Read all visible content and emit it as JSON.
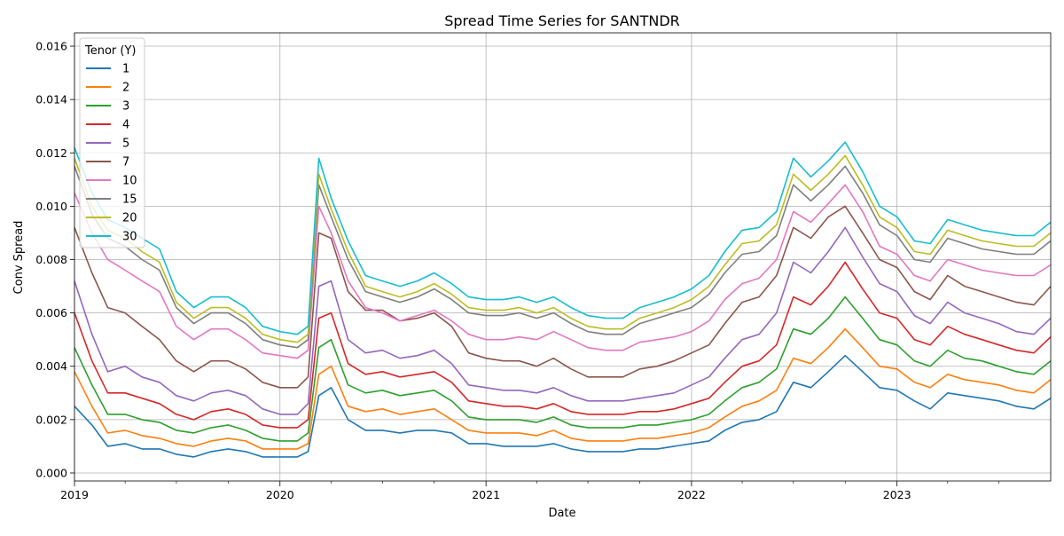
{
  "chart_data": {
    "type": "line",
    "title": "Spread Time Series for SANTNDR",
    "xlabel": "Date",
    "ylabel": "Conv Spread",
    "xlim": [
      "2019-01-01",
      "2023-10-01"
    ],
    "ylim": [
      -0.0003,
      0.0165
    ],
    "grid": true,
    "legend": {
      "title": "Tenor (Y)",
      "placement": "top-left"
    },
    "x_ticks": [
      {
        "date": "2019-01-01",
        "label": "2019"
      },
      {
        "date": "2020-01-01",
        "label": "2020"
      },
      {
        "date": "2021-01-01",
        "label": "2021"
      },
      {
        "date": "2022-01-01",
        "label": "2022"
      },
      {
        "date": "2023-01-01",
        "label": "2023"
      }
    ],
    "y_ticks": [
      "0.000",
      "0.002",
      "0.004",
      "0.006",
      "0.008",
      "0.010",
      "0.012",
      "0.014",
      "0.016"
    ],
    "x": [
      "2019-01-01",
      "2019-02-01",
      "2019-03-01",
      "2019-04-01",
      "2019-05-01",
      "2019-06-01",
      "2019-07-01",
      "2019-08-01",
      "2019-09-01",
      "2019-10-01",
      "2019-11-01",
      "2019-12-01",
      "2020-01-01",
      "2020-02-01",
      "2020-02-20",
      "2020-03-10",
      "2020-04-01",
      "2020-05-01",
      "2020-06-01",
      "2020-07-01",
      "2020-08-01",
      "2020-09-01",
      "2020-10-01",
      "2020-11-01",
      "2020-12-01",
      "2021-01-01",
      "2021-02-01",
      "2021-03-01",
      "2021-04-01",
      "2021-05-01",
      "2021-06-01",
      "2021-07-01",
      "2021-08-01",
      "2021-09-01",
      "2021-10-01",
      "2021-11-01",
      "2021-12-01",
      "2022-01-01",
      "2022-02-01",
      "2022-03-01",
      "2022-04-01",
      "2022-05-01",
      "2022-06-01",
      "2022-07-01",
      "2022-08-01",
      "2022-09-01",
      "2022-10-01",
      "2022-11-01",
      "2022-12-01",
      "2023-01-01",
      "2023-02-01",
      "2023-03-01",
      "2023-04-01",
      "2023-05-01",
      "2023-06-01",
      "2023-07-01",
      "2023-08-01",
      "2023-09-01",
      "2023-10-01"
    ],
    "series": [
      {
        "name": "1",
        "color": "#1f77b4",
        "values": [
          0.0025,
          0.0018,
          0.001,
          0.0011,
          0.0009,
          0.0009,
          0.0007,
          0.0006,
          0.0008,
          0.0009,
          0.0008,
          0.0006,
          0.0006,
          0.0006,
          0.0008,
          0.0029,
          0.0032,
          0.002,
          0.0016,
          0.0016,
          0.0015,
          0.0016,
          0.0016,
          0.0015,
          0.0011,
          0.0011,
          0.001,
          0.001,
          0.001,
          0.0011,
          0.0009,
          0.0008,
          0.0008,
          0.0008,
          0.0009,
          0.0009,
          0.001,
          0.0011,
          0.0012,
          0.0016,
          0.0019,
          0.002,
          0.0023,
          0.0034,
          0.0032,
          0.0038,
          0.0044,
          0.0038,
          0.0032,
          0.0031,
          0.0027,
          0.0024,
          0.003,
          0.0029,
          0.0028,
          0.0027,
          0.0025,
          0.0024,
          0.0028
        ]
      },
      {
        "name": "2",
        "color": "#ff7f0e",
        "values": [
          0.0038,
          0.0025,
          0.0015,
          0.0016,
          0.0014,
          0.0013,
          0.0011,
          0.001,
          0.0012,
          0.0013,
          0.0012,
          0.0009,
          0.0009,
          0.0009,
          0.0011,
          0.0037,
          0.004,
          0.0025,
          0.0023,
          0.0024,
          0.0022,
          0.0023,
          0.0024,
          0.002,
          0.0016,
          0.0015,
          0.0015,
          0.0015,
          0.0014,
          0.0016,
          0.0013,
          0.0012,
          0.0012,
          0.0012,
          0.0013,
          0.0013,
          0.0014,
          0.0015,
          0.0017,
          0.0021,
          0.0025,
          0.0027,
          0.0031,
          0.0043,
          0.0041,
          0.0047,
          0.0054,
          0.0047,
          0.004,
          0.0039,
          0.0034,
          0.0032,
          0.0037,
          0.0035,
          0.0034,
          0.0033,
          0.0031,
          0.003,
          0.0035
        ]
      },
      {
        "name": "3",
        "color": "#2ca02c",
        "values": [
          0.0047,
          0.0033,
          0.0022,
          0.0022,
          0.002,
          0.0019,
          0.0016,
          0.0015,
          0.0017,
          0.0018,
          0.0016,
          0.0013,
          0.0012,
          0.0012,
          0.0015,
          0.0047,
          0.005,
          0.0033,
          0.003,
          0.0031,
          0.0029,
          0.003,
          0.0031,
          0.0027,
          0.0021,
          0.002,
          0.002,
          0.002,
          0.0019,
          0.0021,
          0.0018,
          0.0017,
          0.0017,
          0.0017,
          0.0018,
          0.0018,
          0.0019,
          0.002,
          0.0022,
          0.0027,
          0.0032,
          0.0034,
          0.0039,
          0.0054,
          0.0052,
          0.0058,
          0.0066,
          0.0058,
          0.005,
          0.0048,
          0.0042,
          0.004,
          0.0046,
          0.0043,
          0.0042,
          0.004,
          0.0038,
          0.0037,
          0.0042
        ]
      },
      {
        "name": "4",
        "color": "#d62728",
        "values": [
          0.006,
          0.0042,
          0.003,
          0.003,
          0.0028,
          0.0026,
          0.0022,
          0.002,
          0.0023,
          0.0024,
          0.0022,
          0.0018,
          0.0017,
          0.0017,
          0.002,
          0.0058,
          0.006,
          0.0041,
          0.0037,
          0.0038,
          0.0036,
          0.0037,
          0.0038,
          0.0034,
          0.0027,
          0.0026,
          0.0025,
          0.0025,
          0.0024,
          0.0026,
          0.0023,
          0.0022,
          0.0022,
          0.0022,
          0.0023,
          0.0023,
          0.0024,
          0.0026,
          0.0028,
          0.0034,
          0.004,
          0.0042,
          0.0048,
          0.0066,
          0.0063,
          0.007,
          0.0079,
          0.0069,
          0.006,
          0.0058,
          0.005,
          0.0048,
          0.0055,
          0.0052,
          0.005,
          0.0048,
          0.0046,
          0.0045,
          0.0051
        ]
      },
      {
        "name": "5",
        "color": "#9467bd",
        "values": [
          0.0072,
          0.0052,
          0.0038,
          0.004,
          0.0036,
          0.0034,
          0.0029,
          0.0027,
          0.003,
          0.0031,
          0.0029,
          0.0024,
          0.0022,
          0.0022,
          0.0026,
          0.007,
          0.0072,
          0.005,
          0.0045,
          0.0046,
          0.0043,
          0.0044,
          0.0046,
          0.0041,
          0.0033,
          0.0032,
          0.0031,
          0.0031,
          0.003,
          0.0032,
          0.0029,
          0.0027,
          0.0027,
          0.0027,
          0.0028,
          0.0029,
          0.003,
          0.0033,
          0.0036,
          0.0043,
          0.005,
          0.0052,
          0.006,
          0.0079,
          0.0075,
          0.0083,
          0.0092,
          0.0081,
          0.0071,
          0.0068,
          0.0059,
          0.0056,
          0.0064,
          0.006,
          0.0058,
          0.0056,
          0.0053,
          0.0052,
          0.0058
        ]
      },
      {
        "name": "7",
        "color": "#8c564b",
        "values": [
          0.0092,
          0.0075,
          0.0062,
          0.006,
          0.0055,
          0.005,
          0.0042,
          0.0038,
          0.0042,
          0.0042,
          0.0039,
          0.0034,
          0.0032,
          0.0032,
          0.0036,
          0.009,
          0.0088,
          0.0068,
          0.0061,
          0.0061,
          0.0057,
          0.0058,
          0.006,
          0.0055,
          0.0045,
          0.0043,
          0.0042,
          0.0042,
          0.004,
          0.0043,
          0.0039,
          0.0036,
          0.0036,
          0.0036,
          0.0039,
          0.004,
          0.0042,
          0.0045,
          0.0048,
          0.0056,
          0.0064,
          0.0066,
          0.0074,
          0.0092,
          0.0088,
          0.0096,
          0.01,
          0.009,
          0.008,
          0.0077,
          0.0068,
          0.0065,
          0.0074,
          0.007,
          0.0068,
          0.0066,
          0.0064,
          0.0063,
          0.007
        ]
      },
      {
        "name": "10",
        "color": "#e377c2",
        "values": [
          0.0105,
          0.009,
          0.008,
          0.0076,
          0.0072,
          0.0068,
          0.0055,
          0.005,
          0.0054,
          0.0054,
          0.005,
          0.0045,
          0.0044,
          0.0043,
          0.0046,
          0.01,
          0.009,
          0.0072,
          0.0062,
          0.006,
          0.0057,
          0.0059,
          0.0061,
          0.0057,
          0.0052,
          0.005,
          0.005,
          0.0051,
          0.005,
          0.0053,
          0.005,
          0.0047,
          0.0046,
          0.0046,
          0.0049,
          0.005,
          0.0051,
          0.0053,
          0.0057,
          0.0065,
          0.0071,
          0.0073,
          0.008,
          0.0098,
          0.0094,
          0.0101,
          0.0108,
          0.0098,
          0.0085,
          0.0082,
          0.0074,
          0.0072,
          0.008,
          0.0078,
          0.0076,
          0.0075,
          0.0074,
          0.0074,
          0.0078
        ]
      },
      {
        "name": "15",
        "color": "#7f7f7f",
        "values": [
          0.0115,
          0.0097,
          0.0088,
          0.0085,
          0.008,
          0.0076,
          0.0062,
          0.0056,
          0.006,
          0.006,
          0.0056,
          0.005,
          0.0048,
          0.0047,
          0.005,
          0.0108,
          0.0096,
          0.008,
          0.0068,
          0.0066,
          0.0064,
          0.0066,
          0.0069,
          0.0065,
          0.006,
          0.0059,
          0.0059,
          0.006,
          0.0058,
          0.006,
          0.0056,
          0.0053,
          0.0052,
          0.0052,
          0.0056,
          0.0058,
          0.006,
          0.0062,
          0.0067,
          0.0075,
          0.0082,
          0.0083,
          0.0089,
          0.0108,
          0.0102,
          0.0108,
          0.0115,
          0.0105,
          0.0093,
          0.0089,
          0.008,
          0.0079,
          0.0088,
          0.0086,
          0.0084,
          0.0083,
          0.0082,
          0.0082,
          0.0087
        ]
      },
      {
        "name": "20",
        "color": "#bcbd22",
        "values": [
          0.0118,
          0.01,
          0.0091,
          0.0088,
          0.0083,
          0.0079,
          0.0064,
          0.0058,
          0.0062,
          0.0062,
          0.0058,
          0.0052,
          0.005,
          0.0049,
          0.0052,
          0.0112,
          0.0099,
          0.0083,
          0.007,
          0.0068,
          0.0066,
          0.0068,
          0.0071,
          0.0067,
          0.0062,
          0.0061,
          0.0061,
          0.0062,
          0.006,
          0.0062,
          0.0058,
          0.0055,
          0.0054,
          0.0054,
          0.0058,
          0.006,
          0.0062,
          0.0065,
          0.007,
          0.0078,
          0.0086,
          0.0087,
          0.0093,
          0.0112,
          0.0106,
          0.0112,
          0.0119,
          0.0108,
          0.0096,
          0.0092,
          0.0083,
          0.0082,
          0.0091,
          0.0089,
          0.0087,
          0.0086,
          0.0085,
          0.0085,
          0.009
        ]
      },
      {
        "name": "30",
        "color": "#17becf",
        "values": [
          0.0122,
          0.0105,
          0.0095,
          0.0092,
          0.0088,
          0.0084,
          0.0068,
          0.0062,
          0.0066,
          0.0066,
          0.0062,
          0.0055,
          0.0053,
          0.0052,
          0.0055,
          0.0118,
          0.0103,
          0.0087,
          0.0074,
          0.0072,
          0.007,
          0.0072,
          0.0075,
          0.0071,
          0.0066,
          0.0065,
          0.0065,
          0.0066,
          0.0064,
          0.0066,
          0.0062,
          0.0059,
          0.0058,
          0.0058,
          0.0062,
          0.0064,
          0.0066,
          0.0069,
          0.0074,
          0.0083,
          0.0091,
          0.0092,
          0.0098,
          0.0118,
          0.0111,
          0.0117,
          0.0124,
          0.0113,
          0.01,
          0.0096,
          0.0087,
          0.0086,
          0.0095,
          0.0093,
          0.0091,
          0.009,
          0.0089,
          0.0089,
          0.0094
        ]
      }
    ]
  }
}
